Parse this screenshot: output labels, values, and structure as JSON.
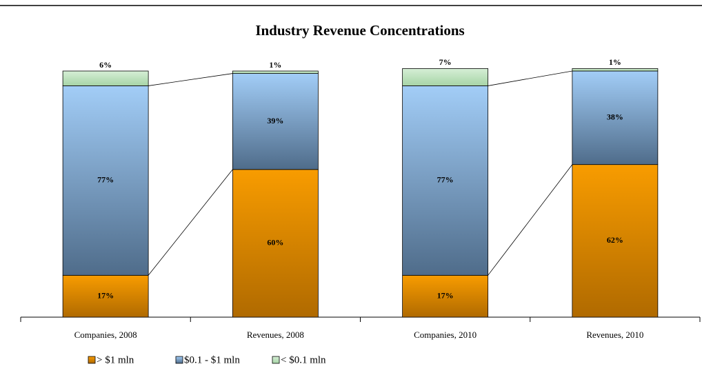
{
  "chart_data": {
    "type": "stacked_bar",
    "title": "Industry Revenue Concentrations",
    "categories": [
      "Companies, 2008",
      "Revenues, 2008",
      "Companies, 2010",
      "Revenues, 2010"
    ],
    "ylim": [
      0,
      100
    ],
    "series": [
      {
        "name": "> $1 mln",
        "color": "#f59a00",
        "values": [
          17,
          60,
          17,
          62
        ],
        "value_labels": [
          "17%",
          "60%",
          "17%",
          "62%"
        ]
      },
      {
        "name": "$0.1 - $1 mln",
        "color": "#8fbbe8",
        "values": [
          77,
          39,
          77,
          38
        ],
        "value_labels": [
          "77%",
          "39%",
          "77%",
          "38%"
        ]
      },
      {
        "name": "< $0.1 mln",
        "color": "#c2e5c2",
        "values": [
          6,
          1,
          7,
          1
        ],
        "value_labels": [
          "6%",
          "1%",
          "7%",
          "1%"
        ]
      }
    ]
  }
}
